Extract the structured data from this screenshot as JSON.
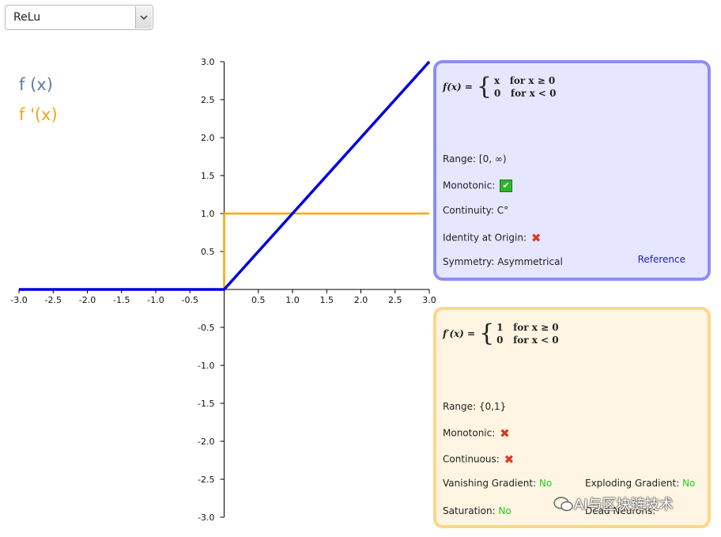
{
  "dropdown": {
    "selected": "ReLu"
  },
  "legend": {
    "fx": "f (x)",
    "dfx": "f '(x)"
  },
  "colors": {
    "fx": "#0000e0",
    "dfx": "#ffa500",
    "fx_legend": "#5a7fa3",
    "dfx_legend": "#f2a51a"
  },
  "chart_data": {
    "type": "line",
    "xlim": [
      -3,
      3
    ],
    "ylim": [
      -3,
      3
    ],
    "x_ticks": [
      "-3.0",
      "-2.5",
      "-2.0",
      "-1.5",
      "-1.0",
      "-0.5",
      "0.5",
      "1.0",
      "1.5",
      "2.0",
      "2.5",
      "3.0"
    ],
    "y_ticks": [
      "3.0",
      "2.5",
      "2.0",
      "1.5",
      "1.0",
      "0.5",
      "-0.5",
      "-1.0",
      "-1.5",
      "-2.0",
      "-2.5",
      "-3.0"
    ],
    "grid": false,
    "series": [
      {
        "name": "f (x)",
        "points": [
          [
            -3,
            0
          ],
          [
            0,
            0
          ],
          [
            3,
            3
          ]
        ]
      },
      {
        "name": "f '(x)",
        "points": [
          [
            -3,
            0
          ],
          [
            0,
            0
          ],
          [
            0,
            1
          ],
          [
            3,
            1
          ]
        ]
      }
    ]
  },
  "panel_f": {
    "formula_lhs": "f(x) =",
    "case1": "x",
    "case1_cond": "for x ≥ 0",
    "case2": "0",
    "case2_cond": "for x < 0",
    "range_label": "Range: [0, ∞)",
    "monotonic_label": "Monotonic:",
    "monotonic_icon": "check-icon",
    "continuity_label": "Continuity: C°",
    "identity_label": "Identity at Origin:",
    "identity_icon": "cross-icon",
    "symmetry_label": "Symmetry: Asymmetrical",
    "reference": "Reference"
  },
  "panel_df": {
    "formula_lhs": "f′(x) =",
    "case1": "1",
    "case1_cond": "for x ≥ 0",
    "case2": "0",
    "case2_cond": "for x < 0",
    "range_label": "Range: {0,1}",
    "monotonic_label": "Monotonic:",
    "continuous_label": "Continuous:",
    "vanishing_label": "Vanishing Gradient:",
    "vanishing_value": "No",
    "exploding_label": "Exploding Gradient:",
    "exploding_value": "No",
    "saturation_label": "Saturation:",
    "saturation_value": "No",
    "dead_label": "Dead Neurons:"
  },
  "watermark": "AI与区块链技术"
}
